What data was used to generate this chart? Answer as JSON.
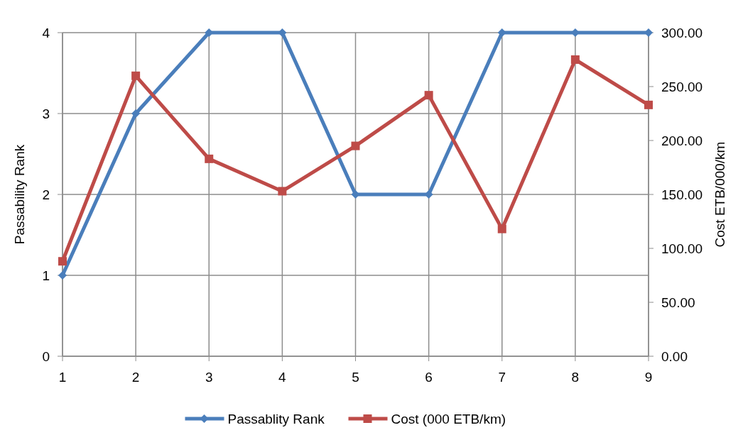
{
  "chart_data": {
    "type": "line",
    "ylabel": "Passability Rank",
    "y2label": "Cost ETB/000/km",
    "x": [
      1,
      2,
      3,
      4,
      5,
      6,
      7,
      8,
      9
    ],
    "xlim": [
      1,
      9
    ],
    "xticks": [
      1,
      2,
      3,
      4,
      5,
      6,
      7,
      8,
      9
    ],
    "ylim": [
      0,
      4
    ],
    "yticks": [
      0,
      1,
      2,
      3,
      4
    ],
    "y2lim": [
      0,
      300
    ],
    "y2ticks": [
      {
        "value": 0,
        "label": "0.00"
      },
      {
        "value": 50,
        "label": "50.00"
      },
      {
        "value": 100,
        "label": "100.00"
      },
      {
        "value": 150,
        "label": "150.00"
      },
      {
        "value": 200,
        "label": "200.00"
      },
      {
        "value": 250,
        "label": "250.00"
      },
      {
        "value": 300,
        "label": "300.00"
      }
    ],
    "series": [
      {
        "name": "Passablity Rank",
        "color": "#4a7ebb",
        "marker": "diamond",
        "values": [
          1,
          3,
          4,
          4,
          2,
          2,
          4,
          4,
          4
        ]
      },
      {
        "name": "Cost (000 ETB/km)",
        "color": "#be4b48",
        "marker": "square",
        "axis": "y2",
        "values": [
          88,
          260,
          183,
          153,
          195,
          242,
          118,
          275,
          233
        ]
      }
    ],
    "grid": true,
    "legend": "bottom"
  }
}
